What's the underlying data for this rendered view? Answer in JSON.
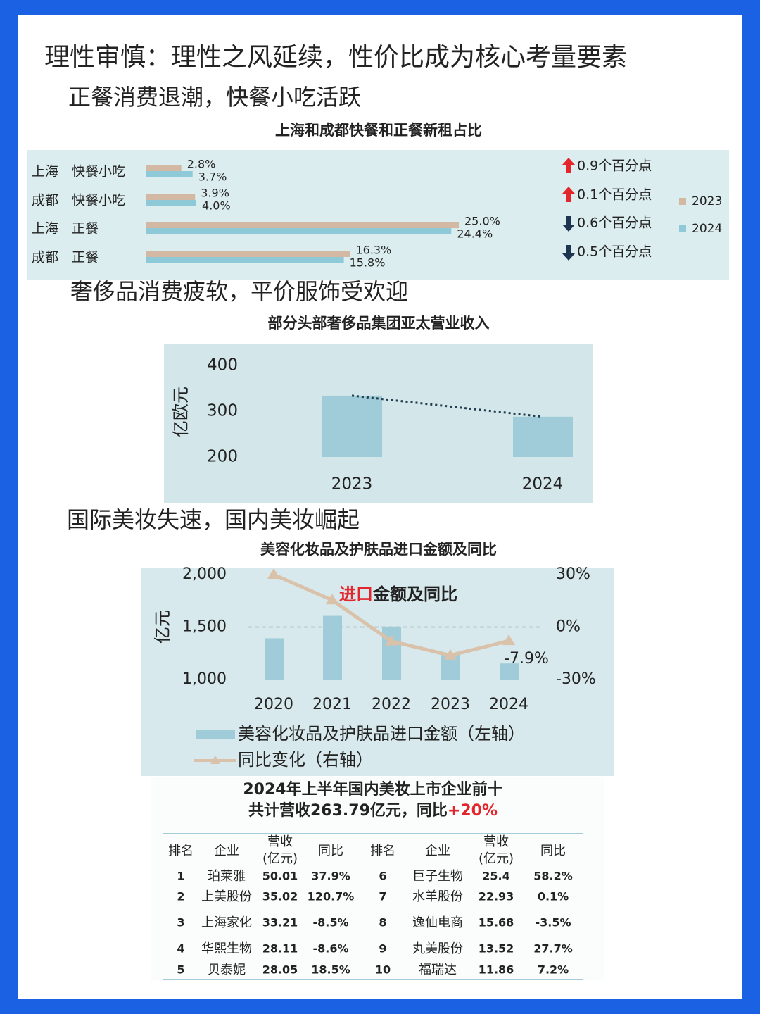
{
  "title": "理性审慎：理性之风延续，性价比成为核心考量要素",
  "chart_data": [
    {
      "type": "hbar",
      "heading": "正餐消费退潮，快餐小吃活跃",
      "title": "上海和成都快餐和正餐新租占比",
      "categories": [
        "上海｜快餐小吃",
        "成都｜快餐小吃",
        "上海｜正餐",
        "成都｜正餐"
      ],
      "series": [
        {
          "name": "2023",
          "color": "#d3b9a3",
          "values": [
            2.8,
            3.9,
            25.0,
            16.3
          ],
          "value_labels": [
            "2.8%",
            "3.9%",
            "25.0%",
            "16.3%"
          ]
        },
        {
          "name": "2024",
          "color": "#8ec9d8",
          "values": [
            3.7,
            4.0,
            24.4,
            15.8
          ],
          "value_labels": [
            "3.7%",
            "4.0%",
            "24.4%",
            "15.8%"
          ]
        }
      ],
      "annotations": [
        {
          "direction": "up",
          "text": "0.9个百分点"
        },
        {
          "direction": "up",
          "text": "0.1个百分点"
        },
        {
          "direction": "down",
          "text": "0.6个百分点"
        },
        {
          "direction": "down",
          "text": "0.5个百分点"
        }
      ],
      "legend": "right"
    },
    {
      "type": "bar",
      "heading": "奢侈品消费疲软，平价服饰受欢迎",
      "title": "部分头部奢侈品集团亚太营业收入",
      "ylabel": "亿欧元",
      "categories": [
        "2023",
        "2024"
      ],
      "values": [
        334,
        288
      ],
      "color": "#9fccd8",
      "ylim": [
        200,
        400
      ],
      "yticks": [
        200,
        300,
        400
      ],
      "trendline": true
    },
    {
      "type": "combo",
      "heading": "国际美妆失速，国内美妆崛起",
      "title": "美容化妆品及护肤品进口金额及同比",
      "inner_title": [
        {
          "text": "进口",
          "color": "#e3262b"
        },
        {
          "text": "金额及同比",
          "color": "#222222"
        }
      ],
      "ylabel": "亿元",
      "categories": [
        "2020",
        "2021",
        "2022",
        "2023",
        "2024"
      ],
      "series": [
        {
          "name": "美容化妆品及护肤品进口金额（左轴）",
          "type": "bar",
          "color": "#9fccd8",
          "values": [
            1393,
            1607,
            1500,
            1247,
            1153
          ]
        },
        {
          "name": "同比变化（右轴）",
          "type": "line",
          "axis": "y2",
          "color": "#d9c1aa",
          "values": [
            30,
            15.4,
            -8.1,
            -16.2,
            -7.9
          ],
          "value_labels": [
            null,
            null,
            null,
            null,
            "-7.9%"
          ]
        }
      ],
      "ylim": [
        1000,
        2000
      ],
      "yticks": [
        {
          "value": 1000,
          "label": "1,000"
        },
        {
          "value": 1500,
          "label": "1,500"
        },
        {
          "value": 2000,
          "label": "2,000"
        }
      ],
      "y2lim": [
        -30,
        30
      ],
      "y2ticks": [
        {
          "value": -30,
          "label": "-30%"
        },
        {
          "value": 0,
          "label": "0%"
        },
        {
          "value": 30,
          "label": "30%"
        }
      ],
      "y2_reference_line": 0
    }
  ],
  "table": {
    "title_lines": [
      "2024年上半年国内美妆上市企业前十",
      "共计营收263.79亿元，同比"
    ],
    "highlight": "+20%",
    "highlight_color": "#e3262b",
    "columns": [
      "排名",
      "企业",
      "营收",
      "同比"
    ],
    "revenue_unit": "(亿元)",
    "rows": [
      [
        "1",
        "珀莱雅",
        "50.01",
        "37.9%"
      ],
      [
        "2",
        "上美股份",
        "35.02",
        "120.7%"
      ],
      [
        "3",
        "上海家化",
        "33.21",
        "-8.5%"
      ],
      [
        "4",
        "华熙生物",
        "28.11",
        "-8.6%"
      ],
      [
        "5",
        "贝泰妮",
        "28.05",
        "18.5%"
      ],
      [
        "6",
        "巨子生物",
        "25.4",
        "58.2%"
      ],
      [
        "7",
        "水羊股份",
        "22.93",
        "0.1%"
      ],
      [
        "8",
        "逸仙电商",
        "15.68",
        "-3.5%"
      ],
      [
        "9",
        "丸美股份",
        "13.52",
        "27.7%"
      ],
      [
        "10",
        "福瑞达",
        "11.86",
        "7.2%"
      ]
    ]
  }
}
